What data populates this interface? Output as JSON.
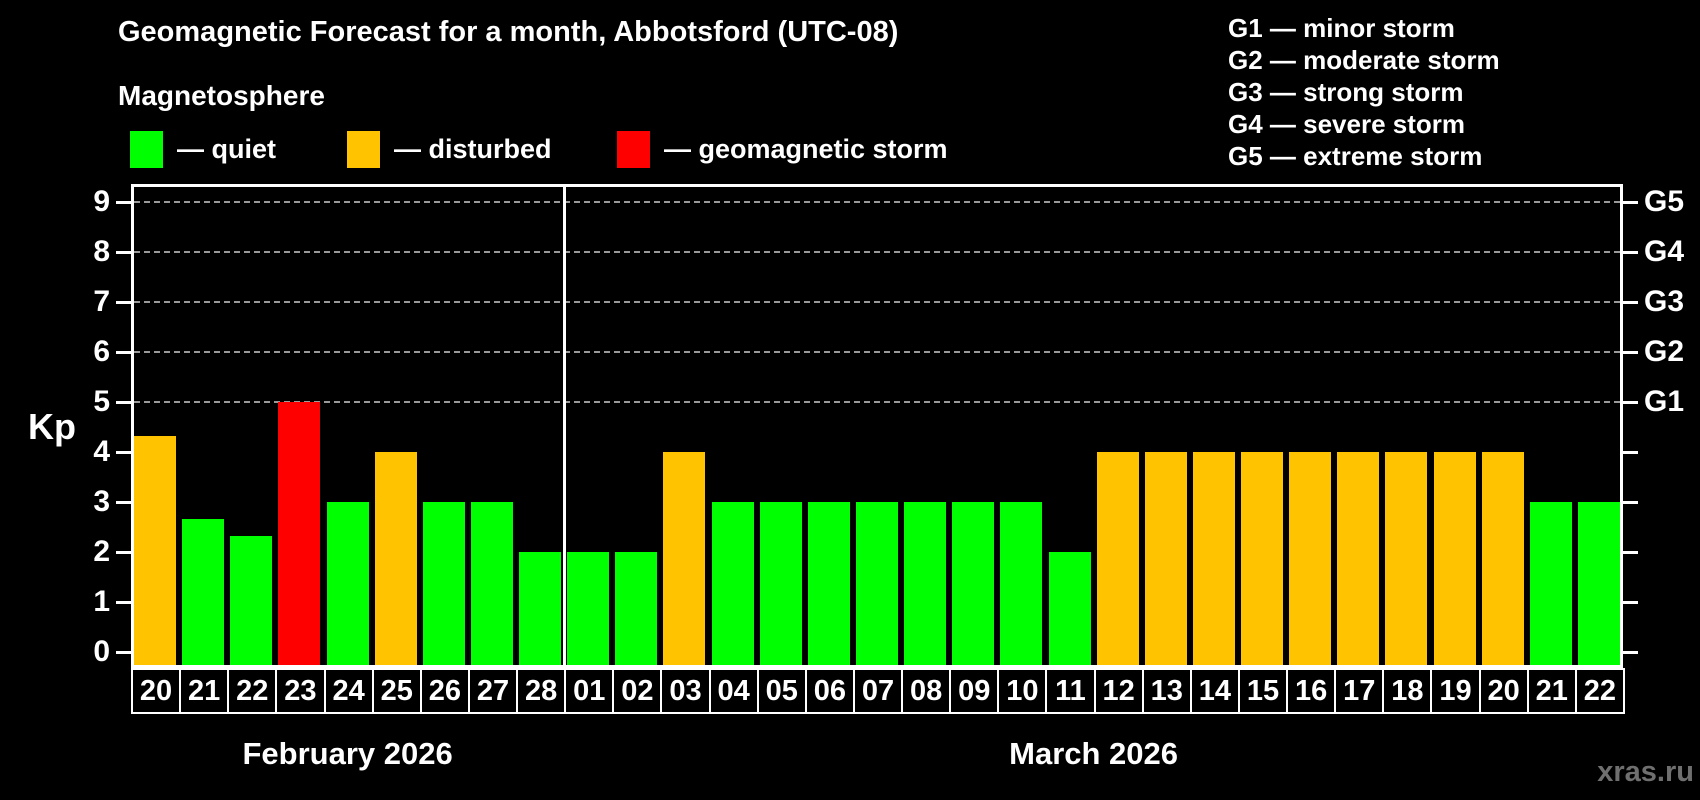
{
  "title": "Geomagnetic Forecast for a month, Abbotsford (UTC-08)",
  "subtitle": "Magnetosphere",
  "kp_label": "Kp",
  "watermark": "xras.ru",
  "legend": [
    {
      "key": "quiet",
      "label": "— quiet",
      "color": "#00ff00"
    },
    {
      "key": "disturbed",
      "label": "— disturbed",
      "color": "#ffc300"
    },
    {
      "key": "storm",
      "label": "— geomagnetic storm",
      "color": "#ff0000"
    }
  ],
  "g_legend": [
    "G1 — minor storm",
    "G2 — moderate storm",
    "G3 — strong storm",
    "G4 — severe storm",
    "G5 — extreme storm"
  ],
  "chart_data": {
    "type": "bar",
    "title": "Geomagnetic Forecast for a month, Abbotsford (UTC-08)",
    "ylabel": "Kp",
    "ylim": [
      0,
      9
    ],
    "y_ticks": [
      0,
      1,
      2,
      3,
      4,
      5,
      6,
      7,
      8,
      9
    ],
    "grid_levels": [
      5,
      6,
      7,
      8,
      9
    ],
    "right_axis_labels": [
      {
        "kp": 5,
        "label": "G1"
      },
      {
        "kp": 6,
        "label": "G2"
      },
      {
        "kp": 7,
        "label": "G3"
      },
      {
        "kp": 8,
        "label": "G4"
      },
      {
        "kp": 9,
        "label": "G5"
      }
    ],
    "months": [
      {
        "label": "February 2026",
        "days": 9
      },
      {
        "label": "March 2026",
        "days": 22
      }
    ],
    "points": [
      {
        "day": "20",
        "kp": 4.33,
        "state": "disturbed"
      },
      {
        "day": "21",
        "kp": 2.67,
        "state": "quiet"
      },
      {
        "day": "22",
        "kp": 2.33,
        "state": "quiet"
      },
      {
        "day": "23",
        "kp": 5.0,
        "state": "storm"
      },
      {
        "day": "24",
        "kp": 3.0,
        "state": "quiet"
      },
      {
        "day": "25",
        "kp": 4.0,
        "state": "disturbed"
      },
      {
        "day": "26",
        "kp": 3.0,
        "state": "quiet"
      },
      {
        "day": "27",
        "kp": 3.0,
        "state": "quiet"
      },
      {
        "day": "28",
        "kp": 2.0,
        "state": "quiet"
      },
      {
        "day": "01",
        "kp": 2.0,
        "state": "quiet"
      },
      {
        "day": "02",
        "kp": 2.0,
        "state": "quiet"
      },
      {
        "day": "03",
        "kp": 4.0,
        "state": "disturbed"
      },
      {
        "day": "04",
        "kp": 3.0,
        "state": "quiet"
      },
      {
        "day": "05",
        "kp": 3.0,
        "state": "quiet"
      },
      {
        "day": "06",
        "kp": 3.0,
        "state": "quiet"
      },
      {
        "day": "07",
        "kp": 3.0,
        "state": "quiet"
      },
      {
        "day": "08",
        "kp": 3.0,
        "state": "quiet"
      },
      {
        "day": "09",
        "kp": 3.0,
        "state": "quiet"
      },
      {
        "day": "10",
        "kp": 3.0,
        "state": "quiet"
      },
      {
        "day": "11",
        "kp": 2.0,
        "state": "quiet"
      },
      {
        "day": "12",
        "kp": 4.0,
        "state": "disturbed"
      },
      {
        "day": "13",
        "kp": 4.0,
        "state": "disturbed"
      },
      {
        "day": "14",
        "kp": 4.0,
        "state": "disturbed"
      },
      {
        "day": "15",
        "kp": 4.0,
        "state": "disturbed"
      },
      {
        "day": "16",
        "kp": 4.0,
        "state": "disturbed"
      },
      {
        "day": "17",
        "kp": 4.0,
        "state": "disturbed"
      },
      {
        "day": "18",
        "kp": 4.0,
        "state": "disturbed"
      },
      {
        "day": "19",
        "kp": 4.0,
        "state": "disturbed"
      },
      {
        "day": "20",
        "kp": 4.0,
        "state": "disturbed"
      },
      {
        "day": "21",
        "kp": 3.0,
        "state": "quiet"
      },
      {
        "day": "22",
        "kp": 3.0,
        "state": "quiet"
      }
    ]
  }
}
